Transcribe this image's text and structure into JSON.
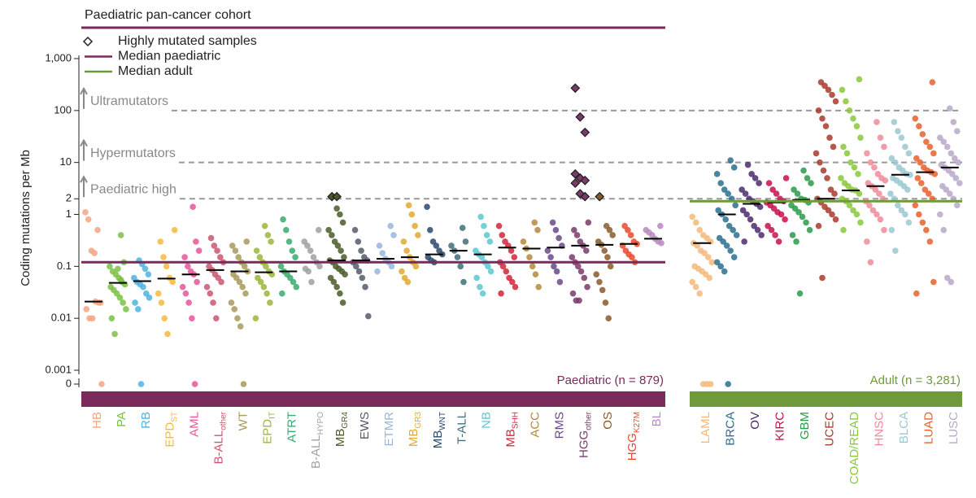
{
  "chart_data": {
    "type": "strip",
    "title": "Paediatric pan-cancer cohort",
    "y_label": "Coding mutations per Mb",
    "log_scale": true,
    "ylim": [
      0.001,
      1000
    ],
    "yticks": [
      0,
      0.001,
      0.01,
      0.1,
      1,
      2,
      10,
      100,
      {
        "value": 1000,
        "label": "1,000"
      }
    ],
    "legend": [
      {
        "name": "Highly mutated samples",
        "marker": "diamond"
      },
      {
        "name": "Median paediatric",
        "color": "#7b2a5c"
      },
      {
        "name": "Median adult",
        "color": "#6e9a3c"
      }
    ],
    "thresholds": [
      {
        "value": 100,
        "label": "Ultramutators"
      },
      {
        "value": 10,
        "label": "Hypermutators"
      },
      {
        "value": 2,
        "label": "Paediatric high"
      }
    ],
    "groups": [
      {
        "label": "Paediatric (n = 879)",
        "color": "#7b2a5c",
        "median": 0.12,
        "categories": [
          {
            "name": "HB",
            "color": "#f4a582",
            "median": 0.021,
            "values": [
              1.1,
              0.8,
              0.2,
              0.18,
              0.5,
              0.02,
              0.015,
              0.01,
              0.01,
              0.021,
              0.02,
              0
            ]
          },
          {
            "name": "PA",
            "color": "#7ac143",
            "median": 0.048,
            "values": [
              0.4,
              0.12,
              0.1,
              0.08,
              0.07,
              0.06,
              0.05,
              0.045,
              0.04,
              0.035,
              0.03,
              0.025,
              0.02,
              0.015,
              0.01,
              0.005,
              0.09,
              0.055
            ]
          },
          {
            "name": "RB",
            "color": "#4fb3e0",
            "median": 0.052,
            "values": [
              0.13,
              0.11,
              0.09,
              0.07,
              0.06,
              0.05,
              0.045,
              0.04,
              0.03,
              0.025,
              0.02,
              0.015,
              0
            ]
          },
          {
            "name": "EPD",
            "sub": "ST",
            "color": "#f5b841",
            "median": 0.058,
            "values": [
              0.5,
              0.3,
              0.15,
              0.1,
              0.06,
              0.05,
              0.03,
              0.02,
              0.01,
              0.005
            ]
          },
          {
            "name": "AML",
            "color": "#e8559a",
            "median": 0.07,
            "values": [
              1.4,
              0.3,
              0.2,
              0.15,
              0.1,
              0.08,
              0.07,
              0.05,
              0.04,
              0.03,
              0.02,
              0.01,
              0
            ]
          },
          {
            "name": "B-ALL",
            "sub": "other",
            "color": "#c9566e",
            "median": 0.085,
            "values": [
              0.35,
              0.25,
              0.2,
              0.15,
              0.12,
              0.1,
              0.085,
              0.07,
              0.06,
              0.05,
              0.04,
              0.03,
              0.02,
              0.01
            ]
          },
          {
            "name": "WT",
            "color": "#a89a5a",
            "median": 0.08,
            "values": [
              0.3,
              0.25,
              0.2,
              0.15,
              0.12,
              0.1,
              0.08,
              0.07,
              0.06,
              0.05,
              0.04,
              0.03,
              0.02,
              0.015,
              0.01,
              0.007,
              0
            ]
          },
          {
            "name": "EPD",
            "sub": "IT",
            "color": "#9bb53b",
            "median": 0.077,
            "values": [
              0.6,
              0.4,
              0.3,
              0.2,
              0.15,
              0.12,
              0.1,
              0.08,
              0.07,
              0.06,
              0.05,
              0.04,
              0.03,
              0.02,
              0.01
            ]
          },
          {
            "name": "ATRT",
            "color": "#3aaa6e",
            "median": 0.08,
            "values": [
              0.8,
              0.5,
              0.3,
              0.2,
              0.15,
              0.1,
              0.08,
              0.07,
              0.06,
              0.05,
              0.04,
              0.03
            ]
          },
          {
            "name": "B-ALL",
            "sub": "HYPO",
            "color": "#a0a0a0",
            "median": 0.12,
            "values": [
              0.5,
              0.3,
              0.25,
              0.2,
              0.15,
              0.12,
              0.1,
              0.09,
              0.08,
              0.05
            ]
          },
          {
            "name": "MB",
            "sub": "GR4",
            "color": "#4a5a28",
            "median": 0.13,
            "values": [
              1.3,
              1,
              0.7,
              0.5,
              0.4,
              0.3,
              0.25,
              0.2,
              0.15,
              0.13,
              0.12,
              0.1,
              0.09,
              0.08,
              0.07,
              0.06,
              0.05,
              0.04,
              0.03,
              0.02
            ],
            "highly_mutated": [
              2.2,
              2.2
            ]
          },
          {
            "name": "EWS",
            "color": "#555a6a",
            "median": 0.13,
            "values": [
              0.5,
              0.3,
              0.2,
              0.15,
              0.13,
              0.12,
              0.1,
              0.08,
              0.06,
              0.04,
              0.011
            ]
          },
          {
            "name": "ETMR",
            "color": "#99b6db",
            "median": 0.14,
            "values": [
              0.6,
              0.4,
              0.25,
              0.18,
              0.14,
              0.12,
              0.1,
              0.08
            ]
          },
          {
            "name": "MB",
            "sub": "GR3",
            "color": "#e0a830",
            "median": 0.15,
            "values": [
              1.5,
              1,
              0.6,
              0.4,
              0.3,
              0.2,
              0.15,
              0.12,
              0.1,
              0.08,
              0.06,
              0.05
            ]
          },
          {
            "name": "MB",
            "sub": "WNT",
            "color": "#2a4a6e",
            "median": 0.17,
            "values": [
              1.4,
              0.5,
              0.3,
              0.25,
              0.2,
              0.17,
              0.15,
              0.13,
              0.12
            ]
          },
          {
            "name": "T-ALL",
            "color": "#3f6e78",
            "median": 0.2,
            "values": [
              0.55,
              0.3,
              0.25,
              0.2,
              0.15,
              0.1,
              0.05
            ]
          },
          {
            "name": "NB",
            "color": "#5cc8d0",
            "median": 0.17,
            "values": [
              0.9,
              0.6,
              0.4,
              0.3,
              0.2,
              0.17,
              0.15,
              0.12,
              0.1,
              0.08,
              0.06,
              0.04,
              0.03
            ]
          },
          {
            "name": "MB",
            "sub": "SHH",
            "color": "#d0263a",
            "median": 0.23,
            "values": [
              0.6,
              0.4,
              0.3,
              0.25,
              0.2,
              0.15,
              0.12,
              0.1,
              0.08,
              0.06,
              0.05,
              0.04,
              0.03
            ]
          },
          {
            "name": "ACC",
            "color": "#b5883a",
            "median": 0.22,
            "values": [
              0.7,
              0.5,
              0.3,
              0.22,
              0.15,
              0.1,
              0.07,
              0.04
            ]
          },
          {
            "name": "RMS",
            "color": "#6a4a8a",
            "median": 0.23,
            "values": [
              0.7,
              0.5,
              0.35,
              0.25,
              0.2,
              0.15,
              0.1,
              0.08,
              0.05
            ]
          },
          {
            "name": "HGG",
            "sub": "other",
            "color": "#7a3a6a",
            "median": 0.25,
            "values": [
              0.7,
              0.5,
              0.4,
              0.3,
              0.25,
              0.2,
              0.15,
              0.12,
              0.1,
              0.08,
              0.06,
              0.04,
              0.03,
              0.022,
              0.022
            ],
            "highly_mutated": [
              270,
              75,
              38,
              6,
              5,
              4.5,
              4,
              2.5,
              2.2
            ]
          },
          {
            "name": "OS",
            "color": "#8a5a2a",
            "median": 0.26,
            "values": [
              0.6,
              0.5,
              0.4,
              0.3,
              0.26,
              0.2,
              0.15,
              0.1,
              0.07,
              0.05,
              0.035,
              0.02,
              0.01
            ],
            "highly_mutated": [
              2.2
            ]
          },
          {
            "name": "HGG",
            "sub": "K27M",
            "color": "#e84a2a",
            "median": 0.27,
            "values": [
              0.6,
              0.5,
              0.4,
              0.3,
              0.27,
              0.25,
              0.2,
              0.17,
              0.15,
              0.12
            ]
          },
          {
            "name": "BL",
            "color": "#b98ac0",
            "median": 0.34,
            "values": [
              0.6,
              0.5,
              0.45,
              0.4,
              0.34,
              0.3,
              0.28
            ]
          }
        ]
      },
      {
        "label": "Adult (n = 3,281)",
        "color": "#6e9a3c",
        "median": 1.8,
        "categories": [
          {
            "name": "LAML",
            "color": "#f5b87a",
            "median": 0.28,
            "values": [
              0.9,
              0.7,
              0.5,
              0.4,
              0.35,
              0.3,
              0.28,
              0.25,
              0.2,
              0.18,
              0.15,
              0.12,
              0.1,
              0.09,
              0.08,
              0.07,
              0.06,
              0.05,
              0.04,
              0.03,
              0,
              0,
              0
            ]
          },
          {
            "name": "BRCA",
            "color": "#2a6e8e",
            "median": 1,
            "values": [
              11,
              8,
              6,
              4,
              3,
              2.5,
              2,
              1.5,
              1.2,
              1,
              0.8,
              0.6,
              0.5,
              0.4,
              0.35,
              0.3,
              0.25,
              0.2,
              0.15,
              0.12,
              0.1,
              0.08,
              0
            ]
          },
          {
            "name": "OV",
            "color": "#4a2a6e",
            "median": 1.6,
            "values": [
              9,
              6,
              5,
              4,
              3,
              2.5,
              2,
              1.8,
              1.6,
              1.4,
              1.2,
              1,
              0.8,
              0.6,
              0.5,
              0.4,
              0.3
            ]
          },
          {
            "name": "KIRC",
            "color": "#c8104a",
            "median": 1.7,
            "values": [
              5,
              4,
              3,
              2.5,
              2,
              1.8,
              1.7,
              1.5,
              1.3,
              1.1,
              1,
              0.8,
              0.6,
              0.5,
              0.4,
              0.3
            ]
          },
          {
            "name": "GBM",
            "color": "#2a9a4a",
            "median": 1.9,
            "values": [
              7,
              5,
              4,
              3,
              2.5,
              2,
              1.9,
              1.7,
              1.5,
              1.3,
              1.1,
              0.9,
              0.7,
              0.5,
              0.4,
              0.3,
              0.03
            ]
          },
          {
            "name": "UCEC",
            "color": "#a83a2a",
            "median": 2,
            "values": [
              350,
              300,
              250,
              200,
              150,
              100,
              70,
              50,
              30,
              20,
              15,
              10,
              7,
              5,
              3,
              2.5,
              2,
              1.7,
              1.4,
              1.2,
              1,
              0.8,
              0.6,
              0.06
            ]
          },
          {
            "name": "COAD/READ",
            "color": "#8ac83a",
            "median": 2.9,
            "values": [
              400,
              250,
              150,
              100,
              70,
              50,
              30,
              20,
              15,
              10,
              8,
              6,
              5,
              4,
              3.5,
              3,
              2.9,
              2.5,
              2,
              1.8,
              1.5,
              1.2,
              1,
              0.7,
              0.5
            ]
          },
          {
            "name": "HNSC",
            "color": "#f08a9a",
            "median": 3.5,
            "values": [
              60,
              30,
              20,
              15,
              10,
              8,
              6,
              5,
              4.5,
              4,
              3.5,
              3,
              2.5,
              2,
              1.8,
              1.5,
              1.2,
              1,
              0.8,
              0.5,
              0.3,
              0.12
            ]
          },
          {
            "name": "BLCA",
            "color": "#9ac8d0",
            "median": 5.8,
            "values": [
              60,
              40,
              30,
              20,
              15,
              12,
              10,
              8,
              7,
              6,
              5.8,
              5,
              4.5,
              4,
              3.5,
              3,
              2.5,
              2,
              1.5,
              1.2,
              1,
              0.7,
              0.5,
              0.2
            ]
          },
          {
            "name": "LUAD",
            "color": "#e8602a",
            "median": 6.5,
            "values": [
              350,
              70,
              50,
              35,
              25,
              20,
              15,
              12,
              10,
              8,
              7,
              6.5,
              6,
              5,
              4,
              3,
              2.5,
              2,
              1.5,
              1,
              0.7,
              0.5,
              0.3,
              0.05,
              0.03
            ]
          },
          {
            "name": "LUSC",
            "color": "#b8a8c8",
            "median": 8,
            "values": [
              110,
              60,
              40,
              30,
              25,
              20,
              15,
              12,
              10,
              9,
              8,
              7,
              6,
              5,
              4,
              3.5,
              3,
              2.5,
              2,
              1.5,
              1,
              0.5,
              0.06,
              0.05
            ]
          }
        ]
      }
    ]
  }
}
